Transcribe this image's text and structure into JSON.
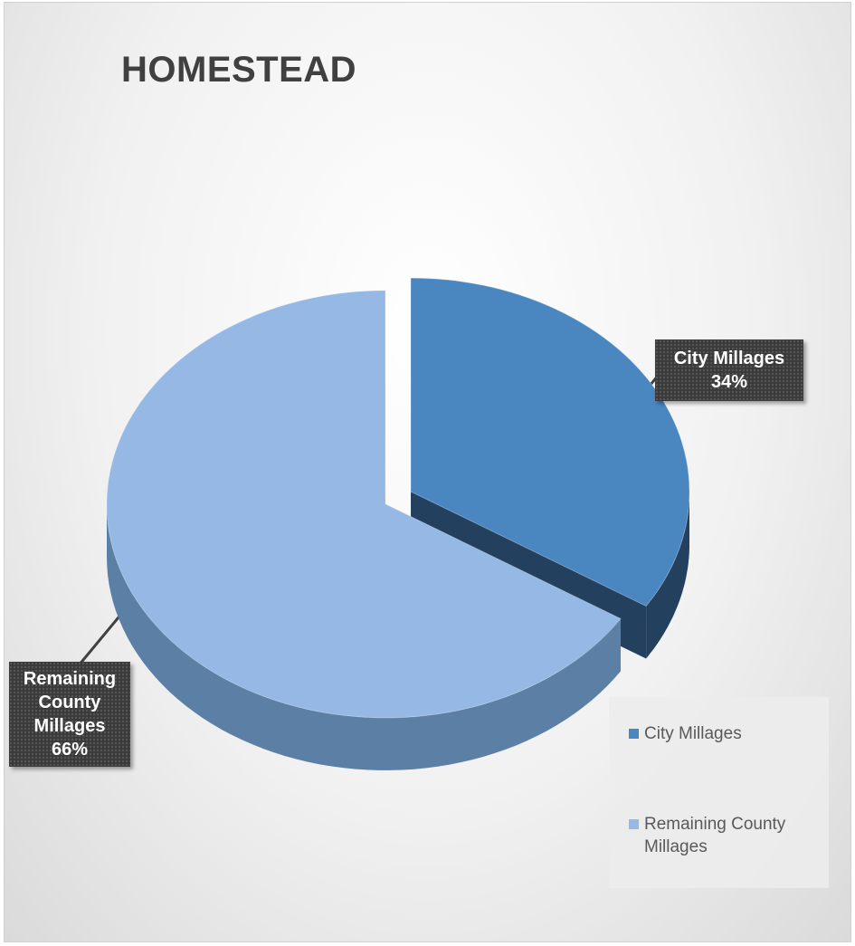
{
  "chart_data": {
    "type": "pie",
    "title": "HOMESTEAD",
    "categories": [
      "City Millages",
      "Remaining County Millages"
    ],
    "values": [
      34,
      66
    ],
    "unit": "%",
    "colors": [
      "#4a86c0",
      "#95b9e4"
    ],
    "side_colors": [
      "#23405f",
      "#5c7fa5"
    ],
    "exploded": true,
    "three_d": true,
    "data_labels": [
      {
        "name": "City Millages",
        "value": "34%"
      },
      {
        "name": "Remaining County Millages",
        "value": "66%"
      }
    ],
    "legend": {
      "placement": "bottom-right",
      "entries": [
        "City Millages",
        "Remaining County Millages"
      ]
    }
  }
}
